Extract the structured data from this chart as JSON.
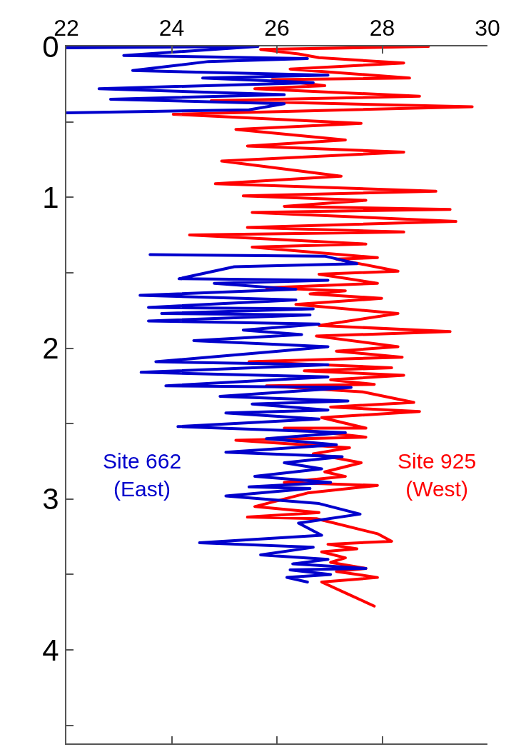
{
  "chart_data": {
    "type": "line",
    "xlim": [
      22,
      30
    ],
    "xticks": [
      22,
      24,
      26,
      28,
      30
    ],
    "ylim": [
      4.62,
      0
    ],
    "yticks": [
      0,
      {
        "value": 0.5,
        "label": null
      },
      1,
      {
        "value": 1.5,
        "label": null
      },
      2,
      {
        "value": 2.5,
        "label": null
      },
      3,
      {
        "value": 3.5,
        "label": null
      },
      4,
      {
        "value": 4.5,
        "label": null
      }
    ],
    "marker": "none",
    "line_style": "solid",
    "series": [
      {
        "name": "Site 662\n(East)",
        "color": "#0000cc",
        "x": [
          22.0,
          25.64,
          23.09,
          26.58,
          24.7,
          23.26,
          26.97,
          24.59,
          26.69,
          22.62,
          26.14,
          22.84,
          26.14,
          25.47,
          22.0,
          null,
          23.59,
          26.91,
          27.52,
          25.19,
          24.14,
          26.97,
          24.81,
          26.36,
          23.4,
          26.36,
          23.56,
          26.69,
          23.81,
          26.63,
          23.56,
          26.8,
          25.36,
          26.47,
          24.42,
          26.97,
          26.03,
          23.7,
          26.97,
          23.42,
          26.97,
          23.89,
          27.41,
          24.92,
          27.35,
          25.53,
          26.97,
          25.03,
          26.8,
          24.12,
          27.3,
          25.8,
          27.13,
          25.03,
          27.24,
          26.14,
          26.85,
          25.58,
          27.02,
          25.47,
          26.63,
          25.03,
          26.8,
          27.58,
          26.41,
          26.85,
          24.53,
          26.69,
          25.69,
          26.97,
          26.3,
          27.69,
          26.25,
          27.02,
          26.19,
          26.58
        ],
        "values": [
          0.01,
          0.0,
          0.06,
          0.08,
          0.1,
          0.16,
          0.19,
          0.21,
          0.24,
          0.28,
          0.32,
          0.35,
          0.38,
          0.42,
          0.44,
          null,
          1.38,
          1.39,
          1.44,
          1.46,
          1.54,
          1.55,
          1.57,
          1.61,
          1.65,
          1.68,
          1.73,
          1.74,
          1.77,
          1.78,
          1.82,
          1.84,
          1.88,
          1.91,
          1.95,
          1.99,
          2.02,
          2.09,
          2.11,
          2.16,
          2.19,
          2.25,
          2.26,
          2.32,
          2.35,
          2.37,
          2.41,
          2.43,
          2.47,
          2.52,
          2.56,
          2.6,
          2.64,
          2.69,
          2.72,
          2.76,
          2.8,
          2.85,
          2.89,
          2.92,
          2.93,
          2.98,
          3.03,
          3.1,
          3.16,
          3.24,
          3.29,
          3.32,
          3.37,
          3.4,
          3.43,
          3.46,
          3.47,
          3.5,
          3.52,
          3.55
        ]
      },
      {
        "name": "Site 925\n(West)",
        "color": "#ff0000",
        "x": [
          28.88,
          25.69,
          26.41,
          26.8,
          28.41,
          26.25,
          28.52,
          25.91,
          26.91,
          25.58,
          28.71,
          24.75,
          29.71,
          24.03,
          27.6,
          25.22,
          27.3,
          25.44,
          28.41,
          24.95,
          27.22,
          24.83,
          29.02,
          25.36,
          27.69,
          26.14,
          29.29,
          25.53,
          29.4,
          25.44,
          28.41,
          24.34,
          27.69,
          25.53,
          27.91,
          27.13,
          28.3,
          26.8,
          27.91,
          25.8,
          27.3,
          26.63,
          27.99,
          26.36,
          28.3,
          26.8,
          29.29,
          26.75,
          28.3,
          27.13,
          28.38,
          25.47,
          28.18,
          26.52,
          28.41,
          27.02,
          27.85,
          25.8,
          27.63,
          28.6,
          27.02,
          28.71,
          26.85,
          27.69,
          26.14,
          27.69,
          25.22,
          27.38,
          26.69,
          27.6,
          26.91,
          27.3,
          26.14,
          27.91,
          26.58,
          25.58,
          26.8,
          25.44,
          26.75,
          27.91,
          28.18,
          26.97,
          27.52,
          26.85,
          27.3,
          27.02,
          27.69,
          27.13,
          27.91,
          26.85,
          27.35,
          27.85
        ],
        "values": [
          0.0,
          0.02,
          0.05,
          0.075,
          0.11,
          0.15,
          0.21,
          0.22,
          0.26,
          0.28,
          0.33,
          0.36,
          0.4,
          0.45,
          0.51,
          0.55,
          0.62,
          0.66,
          0.7,
          0.76,
          0.86,
          0.91,
          0.96,
          0.99,
          1.02,
          1.06,
          1.08,
          1.1,
          1.16,
          1.2,
          1.23,
          1.25,
          1.31,
          1.33,
          1.4,
          1.41,
          1.49,
          1.51,
          1.57,
          1.6,
          1.62,
          1.64,
          1.67,
          1.71,
          1.77,
          1.85,
          1.89,
          1.92,
          1.99,
          2.02,
          2.06,
          2.09,
          2.13,
          2.15,
          2.18,
          2.21,
          2.24,
          2.25,
          2.29,
          2.36,
          2.39,
          2.42,
          2.46,
          2.53,
          2.53,
          2.59,
          2.61,
          2.66,
          2.7,
          2.76,
          2.82,
          2.85,
          2.89,
          2.91,
          2.96,
          3.05,
          3.09,
          3.12,
          3.13,
          3.23,
          3.28,
          3.3,
          3.33,
          3.35,
          3.39,
          3.42,
          3.46,
          3.48,
          3.52,
          3.55,
          3.63,
          3.71
        ]
      }
    ]
  }
}
